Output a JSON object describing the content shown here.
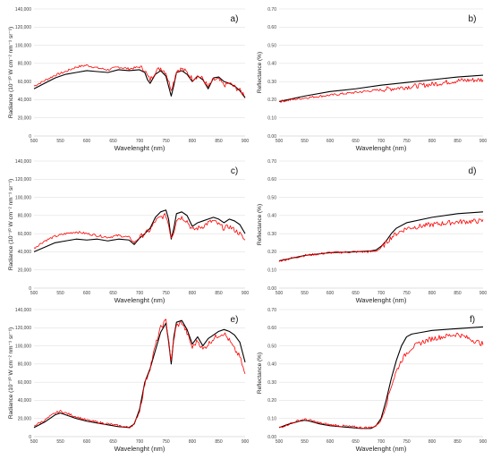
{
  "chart_data": [
    {
      "type": "line",
      "panel_label": "a)",
      "xlabel": "Wavelenght (nm)",
      "ylabel": "Radiance (10⁻¹⁰ W cm⁻² nm⁻¹ sr⁻¹)",
      "xlim": [
        500,
        900
      ],
      "ylim": [
        0,
        140000
      ],
      "xticks": [
        "500",
        "550",
        "600",
        "650",
        "700",
        "750",
        "800",
        "850",
        "900"
      ],
      "yticks": [
        "0",
        "20,000",
        "40,000",
        "60,000",
        "80,000",
        "100,000",
        "120,000",
        "140,000"
      ],
      "grid": true,
      "series": [
        {
          "color": "#000000",
          "noisy": false,
          "x": [
            500,
            520,
            540,
            560,
            580,
            600,
            620,
            640,
            660,
            680,
            700,
            710,
            715,
            720,
            730,
            740,
            750,
            755,
            760,
            765,
            770,
            780,
            790,
            800,
            810,
            820,
            830,
            840,
            850,
            860,
            870,
            880,
            890,
            900
          ],
          "y": [
            52000,
            58000,
            64000,
            68000,
            70000,
            72000,
            71000,
            70000,
            73000,
            72000,
            73000,
            70000,
            62000,
            58000,
            68000,
            72000,
            66000,
            55000,
            44000,
            56000,
            70000,
            72000,
            68000,
            60000,
            66000,
            62000,
            52000,
            64000,
            65000,
            60000,
            58000,
            55000,
            50000,
            42000
          ]
        },
        {
          "color": "#ff0000",
          "noisy": true,
          "x": [
            500,
            520,
            540,
            560,
            580,
            600,
            620,
            640,
            660,
            680,
            700,
            710,
            715,
            720,
            730,
            740,
            750,
            755,
            760,
            765,
            770,
            780,
            790,
            800,
            810,
            820,
            830,
            840,
            850,
            860,
            870,
            880,
            890,
            900
          ],
          "y": [
            55000,
            61000,
            67000,
            71000,
            76000,
            78000,
            75000,
            73000,
            76000,
            74000,
            76000,
            73000,
            66000,
            62000,
            71000,
            75000,
            70000,
            60000,
            52000,
            60000,
            72000,
            74000,
            70000,
            63000,
            66000,
            63000,
            54000,
            62000,
            62000,
            56000,
            58000,
            54000,
            50000,
            45000
          ]
        }
      ]
    },
    {
      "type": "line",
      "panel_label": "b)",
      "xlabel": "Wavelenght (nm)",
      "ylabel": "Reflectance (%)",
      "xlim": [
        500,
        900
      ],
      "ylim": [
        0,
        0.7
      ],
      "xticks": [
        "500",
        "550",
        "600",
        "650",
        "700",
        "750",
        "800",
        "850",
        "900"
      ],
      "yticks": [
        "0.00",
        "0.10",
        "0.20",
        "0.30",
        "0.40",
        "0.50",
        "0.60",
        "0.70"
      ],
      "grid": true,
      "series": [
        {
          "color": "#000000",
          "noisy": false,
          "x": [
            500,
            550,
            600,
            650,
            700,
            750,
            800,
            850,
            900
          ],
          "y": [
            0.19,
            0.22,
            0.245,
            0.26,
            0.28,
            0.295,
            0.31,
            0.325,
            0.335
          ]
        },
        {
          "color": "#ff0000",
          "noisy": true,
          "x": [
            500,
            550,
            600,
            650,
            700,
            750,
            800,
            850,
            900
          ],
          "y": [
            0.19,
            0.21,
            0.225,
            0.24,
            0.255,
            0.27,
            0.285,
            0.305,
            0.31
          ]
        }
      ]
    },
    {
      "type": "line",
      "panel_label": "c)",
      "xlabel": "Wavelenght (nm)",
      "ylabel": "Radiance (10⁻¹⁰ W cm⁻² nm⁻¹ sr⁻¹)",
      "xlim": [
        500,
        900
      ],
      "ylim": [
        0,
        140000
      ],
      "xticks": [
        "500",
        "550",
        "600",
        "650",
        "700",
        "750",
        "800",
        "850",
        "900"
      ],
      "yticks": [
        "0",
        "20,000",
        "40,000",
        "60,000",
        "80,000",
        "100,000",
        "120,000",
        "140,000"
      ],
      "grid": true,
      "series": [
        {
          "color": "#000000",
          "noisy": false,
          "x": [
            500,
            520,
            540,
            560,
            580,
            600,
            620,
            640,
            660,
            680,
            690,
            700,
            710,
            720,
            730,
            740,
            750,
            755,
            760,
            765,
            770,
            780,
            790,
            800,
            810,
            820,
            830,
            840,
            850,
            860,
            870,
            880,
            890,
            900
          ],
          "y": [
            40000,
            45000,
            50000,
            52000,
            54000,
            53000,
            54000,
            52000,
            54000,
            53000,
            48000,
            55000,
            60000,
            66000,
            78000,
            84000,
            86000,
            76000,
            54000,
            66000,
            82000,
            84000,
            80000,
            68000,
            72000,
            74000,
            76000,
            78000,
            76000,
            72000,
            76000,
            74000,
            70000,
            60000
          ]
        },
        {
          "color": "#ff0000",
          "noisy": true,
          "x": [
            500,
            520,
            540,
            560,
            580,
            600,
            620,
            640,
            660,
            680,
            690,
            700,
            710,
            720,
            730,
            740,
            750,
            755,
            760,
            765,
            770,
            780,
            790,
            800,
            810,
            820,
            830,
            840,
            850,
            860,
            870,
            880,
            890,
            900
          ],
          "y": [
            44000,
            52000,
            57000,
            60000,
            62000,
            60000,
            58000,
            56000,
            58000,
            56000,
            50000,
            56000,
            60000,
            64000,
            74000,
            78000,
            80000,
            70000,
            56000,
            62000,
            76000,
            78000,
            74000,
            64000,
            66000,
            68000,
            72000,
            74000,
            70000,
            66000,
            68000,
            64000,
            60000,
            52000
          ]
        }
      ]
    },
    {
      "type": "line",
      "panel_label": "d)",
      "xlabel": "Wavelenght (nm)",
      "ylabel": "Reflectance (%)",
      "xlim": [
        500,
        900
      ],
      "ylim": [
        0,
        0.7
      ],
      "xticks": [
        "500",
        "550",
        "600",
        "650",
        "700",
        "750",
        "800",
        "850",
        "900"
      ],
      "yticks": [
        "0.00",
        "0.10",
        "0.20",
        "0.30",
        "0.40",
        "0.50",
        "0.60",
        "0.70"
      ],
      "grid": true,
      "series": [
        {
          "color": "#000000",
          "noisy": false,
          "x": [
            500,
            550,
            600,
            650,
            680,
            690,
            700,
            710,
            720,
            730,
            750,
            800,
            850,
            900
          ],
          "y": [
            0.15,
            0.18,
            0.195,
            0.2,
            0.205,
            0.21,
            0.23,
            0.26,
            0.3,
            0.33,
            0.36,
            0.39,
            0.41,
            0.42
          ]
        },
        {
          "color": "#ff0000",
          "noisy": true,
          "x": [
            500,
            550,
            600,
            650,
            680,
            690,
            700,
            710,
            720,
            730,
            750,
            800,
            850,
            900
          ],
          "y": [
            0.15,
            0.18,
            0.195,
            0.2,
            0.2,
            0.205,
            0.22,
            0.25,
            0.28,
            0.3,
            0.33,
            0.35,
            0.365,
            0.37
          ]
        }
      ]
    },
    {
      "type": "line",
      "panel_label": "e)",
      "xlabel": "Wavelenght (nm)",
      "ylabel": "Radiance (10⁻¹⁰ W cm⁻² nm⁻¹ sr⁻¹)",
      "xlim": [
        500,
        900
      ],
      "ylim": [
        0,
        140000
      ],
      "xticks": [
        "500",
        "550",
        "600",
        "650",
        "700",
        "750",
        "800",
        "850",
        "900"
      ],
      "yticks": [
        "0",
        "20,000",
        "40,000",
        "60,000",
        "80,000",
        "100,000",
        "120,000",
        "140,000"
      ],
      "grid": true,
      "series": [
        {
          "color": "#000000",
          "noisy": false,
          "x": [
            500,
            520,
            540,
            550,
            560,
            580,
            600,
            620,
            640,
            660,
            680,
            690,
            700,
            710,
            720,
            730,
            740,
            750,
            755,
            760,
            765,
            770,
            780,
            790,
            800,
            810,
            820,
            830,
            840,
            850,
            860,
            870,
            880,
            890,
            900
          ],
          "y": [
            10000,
            16000,
            24000,
            26000,
            24000,
            20000,
            17000,
            15000,
            13000,
            11000,
            10000,
            14000,
            30000,
            60000,
            75000,
            95000,
            115000,
            125000,
            105000,
            80000,
            110000,
            126000,
            128000,
            118000,
            102000,
            110000,
            100000,
            108000,
            112000,
            116000,
            118000,
            116000,
            112000,
            104000,
            82000
          ]
        },
        {
          "color": "#ff0000",
          "noisy": true,
          "x": [
            500,
            520,
            540,
            550,
            560,
            580,
            600,
            620,
            640,
            660,
            680,
            690,
            700,
            710,
            720,
            730,
            740,
            750,
            755,
            760,
            765,
            770,
            780,
            790,
            800,
            810,
            820,
            830,
            840,
            850,
            860,
            870,
            880,
            890,
            900
          ],
          "y": [
            12000,
            18000,
            26000,
            28000,
            26000,
            22000,
            18000,
            16000,
            14000,
            12000,
            10000,
            14000,
            28000,
            58000,
            76000,
            100000,
            120000,
            128000,
            108000,
            82000,
            108000,
            122000,
            126000,
            114000,
            98000,
            106000,
            96000,
            102000,
            108000,
            112000,
            114000,
            106000,
            96000,
            88000,
            68000
          ]
        }
      ]
    },
    {
      "type": "line",
      "panel_label": "f)",
      "xlabel": "Wavelenght (nm)",
      "ylabel": "Reflectance (%)",
      "xlim": [
        500,
        900
      ],
      "ylim": [
        0,
        0.7
      ],
      "xticks": [
        "500",
        "550",
        "600",
        "650",
        "700",
        "750",
        "800",
        "850",
        "900"
      ],
      "yticks": [
        "0.00",
        "0.10",
        "0.20",
        "0.30",
        "0.40",
        "0.50",
        "0.60",
        "0.70"
      ],
      "grid": true,
      "series": [
        {
          "color": "#000000",
          "noisy": false,
          "x": [
            500,
            520,
            540,
            550,
            560,
            580,
            600,
            620,
            640,
            660,
            680,
            690,
            700,
            710,
            720,
            730,
            740,
            750,
            760,
            780,
            800,
            850,
            900
          ],
          "y": [
            0.05,
            0.07,
            0.085,
            0.09,
            0.085,
            0.07,
            0.06,
            0.055,
            0.05,
            0.045,
            0.045,
            0.06,
            0.1,
            0.2,
            0.32,
            0.42,
            0.5,
            0.55,
            0.565,
            0.575,
            0.585,
            0.595,
            0.605
          ]
        },
        {
          "color": "#ff0000",
          "noisy": true,
          "x": [
            500,
            520,
            540,
            550,
            560,
            580,
            600,
            620,
            640,
            660,
            680,
            690,
            700,
            710,
            720,
            730,
            740,
            750,
            760,
            780,
            800,
            850,
            900
          ],
          "y": [
            0.05,
            0.07,
            0.09,
            0.095,
            0.09,
            0.075,
            0.065,
            0.06,
            0.055,
            0.05,
            0.05,
            0.06,
            0.09,
            0.18,
            0.28,
            0.36,
            0.42,
            0.46,
            0.49,
            0.52,
            0.54,
            0.565,
            0.51
          ]
        }
      ]
    }
  ]
}
